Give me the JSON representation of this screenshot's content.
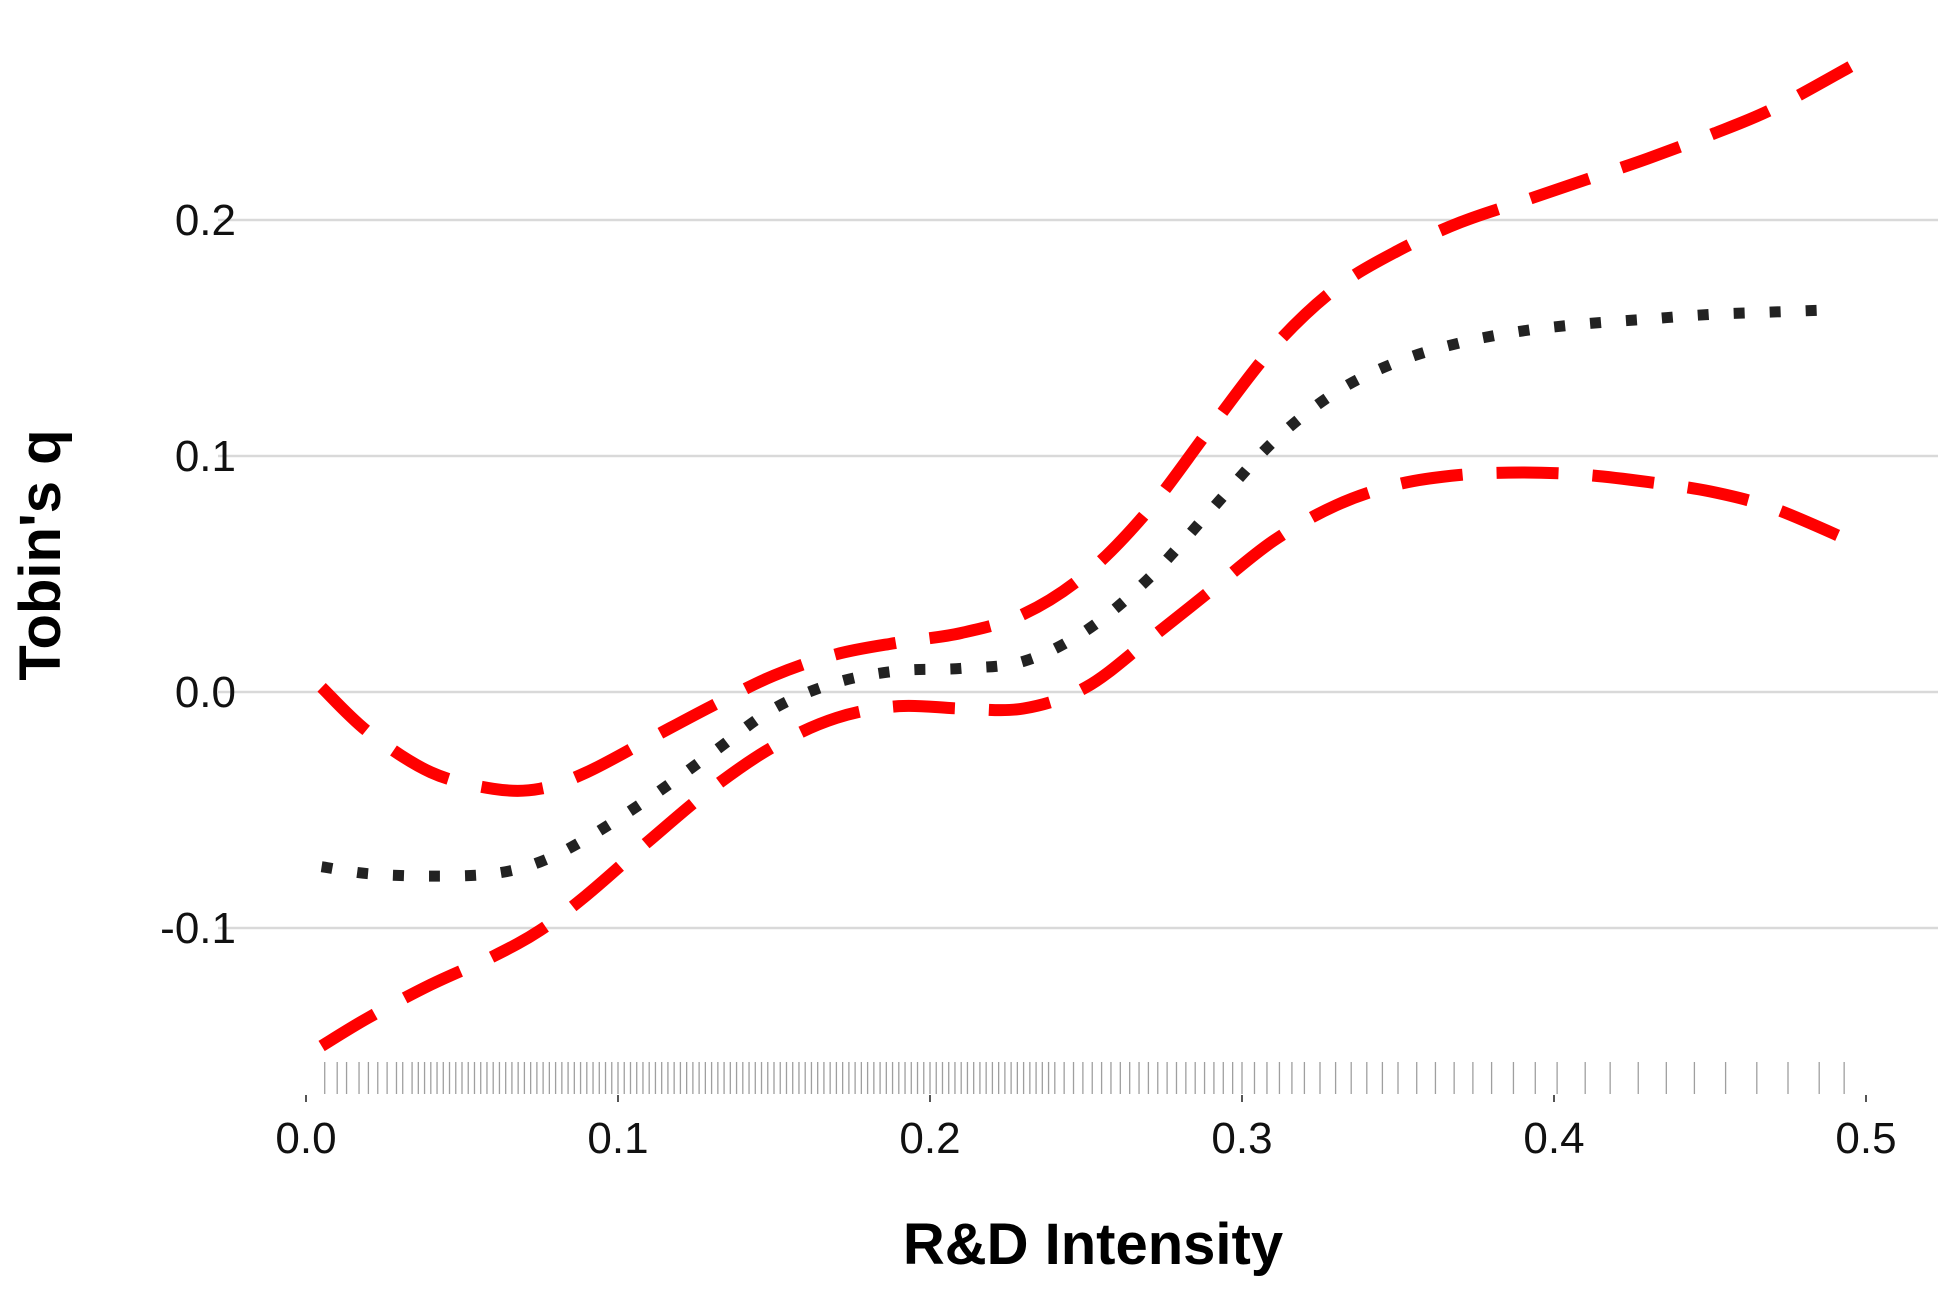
{
  "chart_data": {
    "type": "line",
    "title": "",
    "xlabel": "R&D Intensity",
    "ylabel": "Tobin's q",
    "xlim": [
      0,
      0.5
    ],
    "ylim": [
      -0.155,
      0.27
    ],
    "x_ticks": [
      0.0,
      0.1,
      0.2,
      0.3,
      0.4,
      0.5
    ],
    "x_tick_labels": [
      "0.0",
      "0.1",
      "0.2",
      "0.3",
      "0.4",
      "0.5"
    ],
    "y_ticks": [
      -0.1,
      0.0,
      0.1,
      0.2
    ],
    "y_tick_labels": [
      "-0.1",
      "0.0",
      "0.1",
      "0.2"
    ],
    "grid": "horizontal",
    "legend": "none",
    "colors": {
      "estimate": "#222222",
      "bounds": "#ff0000",
      "grid": "#d9d9d9",
      "rug": "#7f7f7f"
    },
    "series": [
      {
        "style": "dotted",
        "color": "#222222",
        "x": [
          0.005,
          0.02,
          0.04,
          0.06,
          0.075,
          0.09,
          0.11,
          0.13,
          0.15,
          0.17,
          0.19,
          0.21,
          0.23,
          0.25,
          0.27,
          0.29,
          0.31,
          0.33,
          0.35,
          0.37,
          0.39,
          0.41,
          0.43,
          0.45,
          0.47,
          0.49
        ],
        "y": [
          -0.074,
          -0.077,
          -0.078,
          -0.077,
          -0.072,
          -0.062,
          -0.045,
          -0.026,
          -0.007,
          0.004,
          0.009,
          0.01,
          0.013,
          0.026,
          0.048,
          0.077,
          0.106,
          0.127,
          0.14,
          0.148,
          0.153,
          0.156,
          0.158,
          0.16,
          0.161,
          0.162
        ]
      },
      {
        "style": "dashed",
        "color": "#ff0000",
        "x": [
          0.005,
          0.02,
          0.04,
          0.06,
          0.075,
          0.09,
          0.11,
          0.13,
          0.15,
          0.17,
          0.19,
          0.21,
          0.23,
          0.25,
          0.27,
          0.29,
          0.31,
          0.33,
          0.35,
          0.37,
          0.39,
          0.41,
          0.43,
          0.45,
          0.47,
          0.495
        ],
        "y": [
          0.002,
          -0.017,
          -0.034,
          -0.041,
          -0.041,
          -0.034,
          -0.02,
          -0.006,
          0.007,
          0.016,
          0.021,
          0.025,
          0.033,
          0.05,
          0.077,
          0.112,
          0.146,
          0.171,
          0.187,
          0.199,
          0.208,
          0.217,
          0.226,
          0.236,
          0.247,
          0.265
        ]
      },
      {
        "style": "dashed",
        "color": "#ff0000",
        "x": [
          0.005,
          0.02,
          0.04,
          0.06,
          0.075,
          0.09,
          0.11,
          0.13,
          0.15,
          0.17,
          0.19,
          0.21,
          0.23,
          0.25,
          0.27,
          0.29,
          0.31,
          0.33,
          0.35,
          0.37,
          0.39,
          0.41,
          0.43,
          0.45,
          0.47,
          0.495
        ],
        "y": [
          -0.15,
          -0.138,
          -0.124,
          -0.112,
          -0.101,
          -0.086,
          -0.063,
          -0.041,
          -0.023,
          -0.011,
          -0.006,
          -0.007,
          -0.007,
          0.002,
          0.022,
          0.043,
          0.064,
          0.079,
          0.088,
          0.092,
          0.093,
          0.092,
          0.089,
          0.085,
          0.078,
          0.064
        ]
      }
    ],
    "rug": [
      0.006,
      0.01,
      0.013,
      0.017,
      0.02,
      0.023,
      0.026,
      0.029,
      0.031,
      0.034,
      0.036,
      0.038,
      0.04,
      0.042,
      0.044,
      0.046,
      0.048,
      0.05,
      0.052,
      0.054,
      0.056,
      0.058,
      0.06,
      0.062,
      0.064,
      0.066,
      0.068,
      0.07,
      0.072,
      0.074,
      0.076,
      0.078,
      0.08,
      0.082,
      0.084,
      0.086,
      0.088,
      0.09,
      0.092,
      0.094,
      0.096,
      0.098,
      0.1,
      0.102,
      0.104,
      0.106,
      0.108,
      0.11,
      0.112,
      0.114,
      0.116,
      0.118,
      0.12,
      0.122,
      0.124,
      0.126,
      0.128,
      0.13,
      0.132,
      0.134,
      0.136,
      0.138,
      0.14,
      0.142,
      0.144,
      0.146,
      0.148,
      0.15,
      0.152,
      0.154,
      0.156,
      0.158,
      0.16,
      0.162,
      0.164,
      0.166,
      0.168,
      0.17,
      0.172,
      0.174,
      0.176,
      0.178,
      0.18,
      0.182,
      0.184,
      0.186,
      0.188,
      0.19,
      0.192,
      0.194,
      0.196,
      0.198,
      0.2,
      0.202,
      0.204,
      0.206,
      0.208,
      0.21,
      0.212,
      0.214,
      0.216,
      0.218,
      0.22,
      0.222,
      0.224,
      0.226,
      0.228,
      0.23,
      0.232,
      0.234,
      0.236,
      0.238,
      0.24,
      0.243,
      0.246,
      0.249,
      0.252,
      0.255,
      0.258,
      0.261,
      0.264,
      0.267,
      0.27,
      0.273,
      0.276,
      0.279,
      0.282,
      0.285,
      0.288,
      0.291,
      0.294,
      0.297,
      0.3,
      0.304,
      0.308,
      0.312,
      0.316,
      0.32,
      0.325,
      0.33,
      0.335,
      0.34,
      0.345,
      0.35,
      0.356,
      0.362,
      0.368,
      0.374,
      0.38,
      0.387,
      0.394,
      0.401,
      0.41,
      0.418,
      0.427,
      0.436,
      0.445,
      0.455,
      0.465,
      0.475,
      0.485,
      0.493
    ]
  }
}
